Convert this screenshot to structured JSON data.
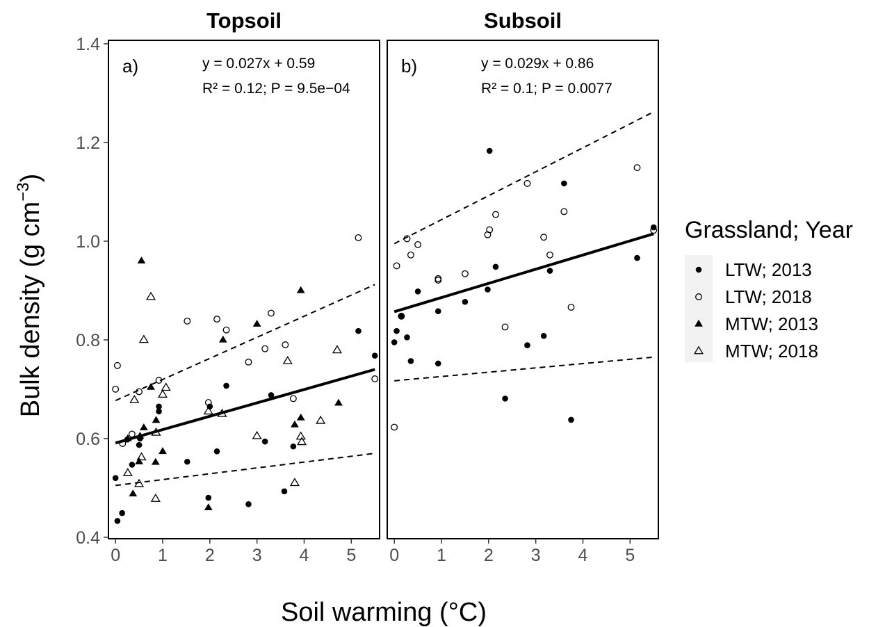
{
  "chart_data": {
    "type": "scatter",
    "xlabel": "Soil warming (°C)",
    "ylabel_main": "Bulk density (g cm",
    "ylabel_sup": "−3",
    "ylabel_close": ")",
    "xlim": [
      -0.15,
      5.6
    ],
    "ylim": [
      0.397,
      1.407
    ],
    "xticks": [
      0,
      1,
      2,
      3,
      4,
      5
    ],
    "yticks": [
      0.4,
      0.6,
      0.8,
      1.0,
      1.2,
      1.4
    ],
    "ytick_labels": [
      "0.4",
      "0.6",
      "0.8",
      "1.0",
      "1.2",
      "1.4"
    ],
    "legend": {
      "title": "Grassland; Year",
      "position": "right",
      "entries": [
        {
          "label": "LTW; 2013",
          "marker": "filled-circle"
        },
        {
          "label": "LTW; 2018",
          "marker": "open-circle"
        },
        {
          "label": "MTW; 2013",
          "marker": "filled-triangle"
        },
        {
          "label": "MTW; 2018",
          "marker": "open-triangle"
        }
      ]
    },
    "panels": [
      {
        "title": "Topsoil",
        "label": "a)",
        "equation": "y = 0.027x + 0.59",
        "stats": "R² = 0.12; P = 9.5e−04",
        "fit": {
          "x": [
            0,
            5.5
          ],
          "y": [
            0.591,
            0.74
          ]
        },
        "ci_lower": {
          "x": [
            0,
            5.5
          ],
          "y": [
            0.505,
            0.57
          ]
        },
        "ci_upper": {
          "x": [
            0,
            5.5
          ],
          "y": [
            0.677,
            0.912
          ]
        },
        "series": [
          {
            "name": "LTW; 2013",
            "marker": "filled-circle",
            "points": [
              [
                0.0,
                0.52
              ],
              [
                0.04,
                0.433
              ],
              [
                0.14,
                0.449
              ],
              [
                0.25,
                0.598
              ],
              [
                0.35,
                0.547
              ],
              [
                0.5,
                0.587
              ],
              [
                0.52,
                0.6
              ],
              [
                0.92,
                0.655
              ],
              [
                0.92,
                0.665
              ],
              [
                1.52,
                0.553
              ],
              [
                1.97,
                0.48
              ],
              [
                2.0,
                0.665
              ],
              [
                2.15,
                0.574
              ],
              [
                2.35,
                0.707
              ],
              [
                2.82,
                0.467
              ],
              [
                3.17,
                0.594
              ],
              [
                3.3,
                0.688
              ],
              [
                3.58,
                0.493
              ],
              [
                3.77,
                0.584
              ],
              [
                5.15,
                0.818
              ],
              [
                5.5,
                0.768
              ]
            ]
          },
          {
            "name": "LTW; 2018",
            "marker": "open-circle",
            "points": [
              [
                0.0,
                0.7
              ],
              [
                0.04,
                0.748
              ],
              [
                0.15,
                0.59
              ],
              [
                0.35,
                0.609
              ],
              [
                0.5,
                0.695
              ],
              [
                0.92,
                0.718
              ],
              [
                1.52,
                0.838
              ],
              [
                1.97,
                0.673
              ],
              [
                2.15,
                0.842
              ],
              [
                2.35,
                0.82
              ],
              [
                2.82,
                0.755
              ],
              [
                3.17,
                0.782
              ],
              [
                3.3,
                0.854
              ],
              [
                3.6,
                0.79
              ],
              [
                3.77,
                0.681
              ],
              [
                5.15,
                1.007
              ],
              [
                5.5,
                0.721
              ]
            ]
          },
          {
            "name": "MTW; 2013",
            "marker": "filled-triangle",
            "points": [
              [
                0.26,
                0.6
              ],
              [
                0.37,
                0.488
              ],
              [
                0.5,
                0.553
              ],
              [
                0.52,
                0.605
              ],
              [
                0.55,
                0.96
              ],
              [
                0.6,
                0.622
              ],
              [
                0.75,
                0.704
              ],
              [
                0.85,
                0.552
              ],
              [
                0.86,
                0.637
              ],
              [
                1.0,
                0.574
              ],
              [
                1.97,
                0.46
              ],
              [
                2.28,
                0.8
              ],
              [
                3.0,
                0.832
              ],
              [
                3.8,
                0.628
              ],
              [
                3.93,
                0.642
              ],
              [
                3.93,
                0.9
              ],
              [
                4.73,
                0.672
              ]
            ]
          },
          {
            "name": "MTW; 2018",
            "marker": "open-triangle",
            "points": [
              [
                0.26,
                0.53
              ],
              [
                0.4,
                0.678
              ],
              [
                0.5,
                0.508
              ],
              [
                0.55,
                0.562
              ],
              [
                0.6,
                0.8
              ],
              [
                0.75,
                0.887
              ],
              [
                0.85,
                0.478
              ],
              [
                0.86,
                0.612
              ],
              [
                1.0,
                0.689
              ],
              [
                1.07,
                0.703
              ],
              [
                1.97,
                0.655
              ],
              [
                2.26,
                0.65
              ],
              [
                3.0,
                0.605
              ],
              [
                3.65,
                0.757
              ],
              [
                3.8,
                0.51
              ],
              [
                3.93,
                0.604
              ],
              [
                3.95,
                0.593
              ],
              [
                4.35,
                0.636
              ],
              [
                4.7,
                0.779
              ]
            ]
          }
        ]
      },
      {
        "title": "Subsoil",
        "label": "b)",
        "equation": "y = 0.029x + 0.86",
        "stats": "R² = 0.1; P = 0.0077",
        "fit": {
          "x": [
            0,
            5.5
          ],
          "y": [
            0.857,
            1.015
          ]
        },
        "ci_lower": {
          "x": [
            0,
            5.5
          ],
          "y": [
            0.717,
            0.765
          ]
        },
        "ci_upper": {
          "x": [
            0,
            5.5
          ],
          "y": [
            0.995,
            1.262
          ]
        },
        "series": [
          {
            "name": "LTW; 2013",
            "marker": "filled-circle",
            "points": [
              [
                0.0,
                0.795
              ],
              [
                0.05,
                0.818
              ],
              [
                0.15,
                0.848
              ],
              [
                0.27,
                0.805
              ],
              [
                0.35,
                0.757
              ],
              [
                0.5,
                0.898
              ],
              [
                0.93,
                0.752
              ],
              [
                0.93,
                0.858
              ],
              [
                1.5,
                0.877
              ],
              [
                1.98,
                0.902
              ],
              [
                2.02,
                1.183
              ],
              [
                2.15,
                0.948
              ],
              [
                2.35,
                0.681
              ],
              [
                2.82,
                0.789
              ],
              [
                3.17,
                0.808
              ],
              [
                3.3,
                0.94
              ],
              [
                3.6,
                1.117
              ],
              [
                3.75,
                0.638
              ],
              [
                5.15,
                0.966
              ],
              [
                5.5,
                1.028
              ]
            ]
          },
          {
            "name": "LTW; 2018",
            "marker": "open-circle",
            "points": [
              [
                0.0,
                0.623
              ],
              [
                0.05,
                0.95
              ],
              [
                0.15,
                0.848
              ],
              [
                0.27,
                1.005
              ],
              [
                0.35,
                0.972
              ],
              [
                0.5,
                0.993
              ],
              [
                0.93,
                0.921
              ],
              [
                0.93,
                0.924
              ],
              [
                1.5,
                0.934
              ],
              [
                1.98,
                1.013
              ],
              [
                2.02,
                1.023
              ],
              [
                2.15,
                1.054
              ],
              [
                2.35,
                0.826
              ],
              [
                2.82,
                1.117
              ],
              [
                3.17,
                1.008
              ],
              [
                3.3,
                0.972
              ],
              [
                3.6,
                1.06
              ],
              [
                3.75,
                0.866
              ],
              [
                5.15,
                1.149
              ],
              [
                5.5,
                1.022
              ]
            ]
          }
        ]
      }
    ]
  }
}
